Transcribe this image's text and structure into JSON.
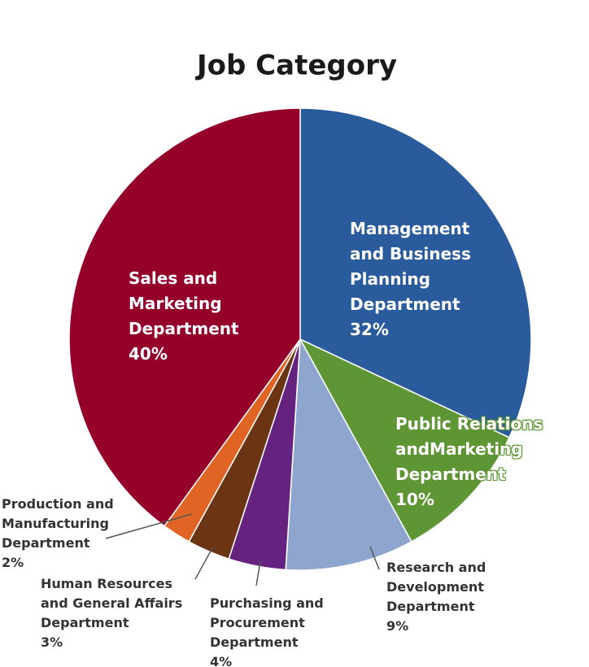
{
  "chart_data": {
    "type": "pie",
    "title": "Job Category",
    "categories": [
      "Management and Business Planning Department",
      "Public Relations andMarketing Department",
      "Research and Development Department",
      "Purchasing and Procurement Department",
      "Human Resources and General Affairs Department",
      "Production and Manufacturing Department",
      "Sales and Marketing Department"
    ],
    "values": [
      32,
      10,
      9,
      4,
      3,
      2,
      40
    ],
    "value_labels": [
      "32%",
      "10%",
      "9%",
      "4%",
      "3%",
      "2%",
      "40%"
    ],
    "colors": [
      "#2a5b9c",
      "#5f9635",
      "#8ea6cd",
      "#65237f",
      "#6b3413",
      "#e06424",
      "#95002b"
    ]
  }
}
